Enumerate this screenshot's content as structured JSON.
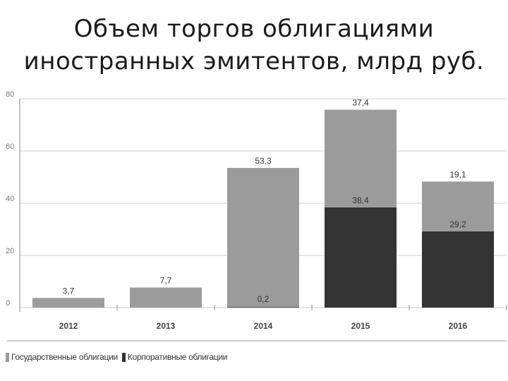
{
  "title_lines": [
    "Объем торгов облигациями",
    "иностранных эмитентов, млрд руб."
  ],
  "legend": {
    "gov": "Государственные облигации",
    "corp": "Корпоративные облигации"
  },
  "colors": {
    "gov": "#9b9b9b",
    "corp": "#333333",
    "grid": "#cccccc",
    "axis": "#888888"
  },
  "chart_data": {
    "type": "bar",
    "stacked": true,
    "categories": [
      "2012",
      "2013",
      "2014",
      "2015",
      "2016"
    ],
    "series": [
      {
        "name": "Корпоративные облигации",
        "key": "corp",
        "values": [
          0,
          0,
          0.2,
          38.4,
          29.2
        ],
        "labels": [
          "",
          "",
          "0,2",
          "38,4",
          "29,2"
        ]
      },
      {
        "name": "Государственные облигации",
        "key": "gov",
        "values": [
          3.7,
          7.7,
          53.3,
          37.4,
          19.1
        ],
        "labels": [
          "3,7",
          "7,7",
          "53,3",
          "37,4",
          "19,1"
        ]
      }
    ],
    "yticks": [
      "0",
      "20",
      "40",
      "60",
      "80"
    ],
    "ylim": [
      0,
      80
    ],
    "grid": true,
    "legend_position": "bottom-left"
  }
}
